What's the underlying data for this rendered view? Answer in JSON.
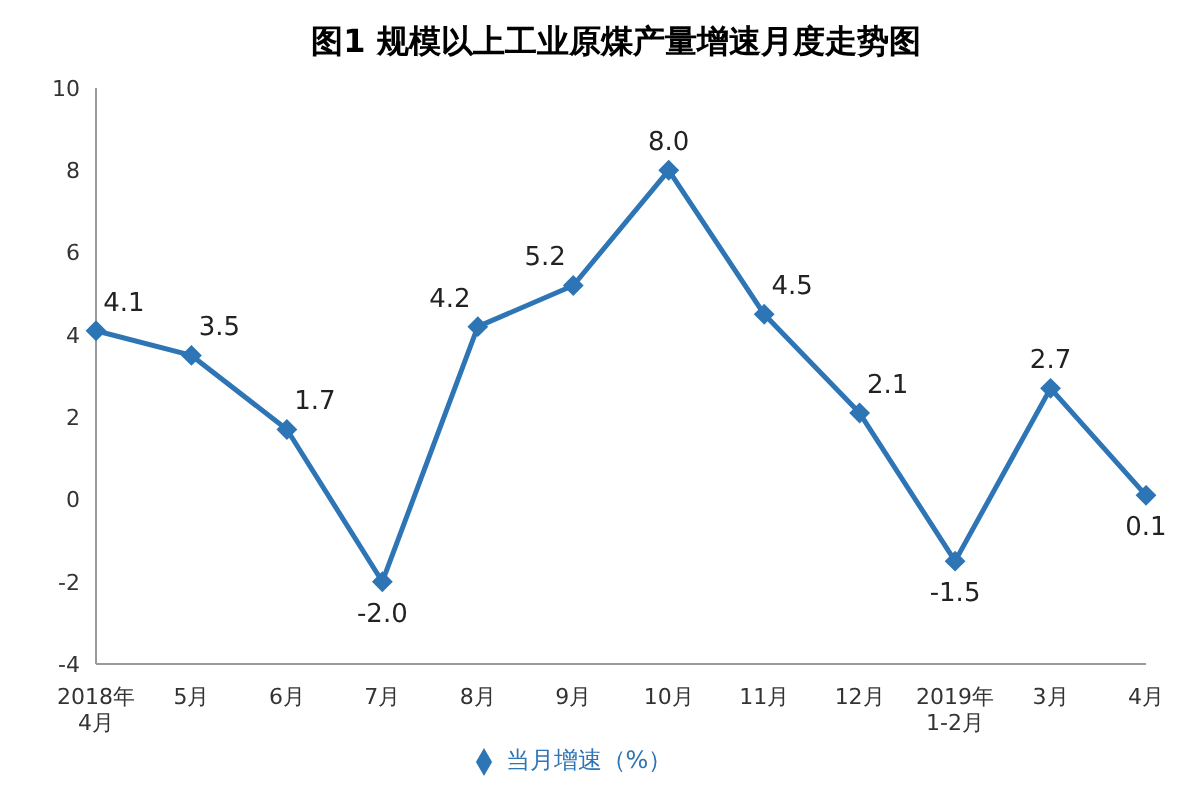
{
  "chart_data": {
    "type": "line",
    "title": "图1  规模以上工业原煤产量增速月度走势图",
    "categories": [
      "2018年4月",
      "5月",
      "6月",
      "7月",
      "8月",
      "9月",
      "10月",
      "11月",
      "12月",
      "2019年1-2月",
      "3月",
      "4月"
    ],
    "series": [
      {
        "name": "当月增速（%）",
        "color": "#2e75b6",
        "values": [
          4.1,
          3.5,
          1.7,
          -2.0,
          4.2,
          5.2,
          8.0,
          4.5,
          2.1,
          -1.5,
          2.7,
          0.1
        ],
        "value_labels": [
          "4.1",
          "3.5",
          "1.7",
          "-2.0",
          "4.2",
          "5.2",
          "8.0",
          "4.5",
          "2.1",
          "-1.5",
          "2.7",
          "0.1"
        ]
      }
    ],
    "ylim": [
      -4,
      10
    ],
    "yticks": [
      -4,
      -2,
      0,
      2,
      4,
      6,
      8,
      10
    ],
    "grid": false,
    "legend": "bottom",
    "marker": "diamond",
    "line_style": "solid"
  }
}
